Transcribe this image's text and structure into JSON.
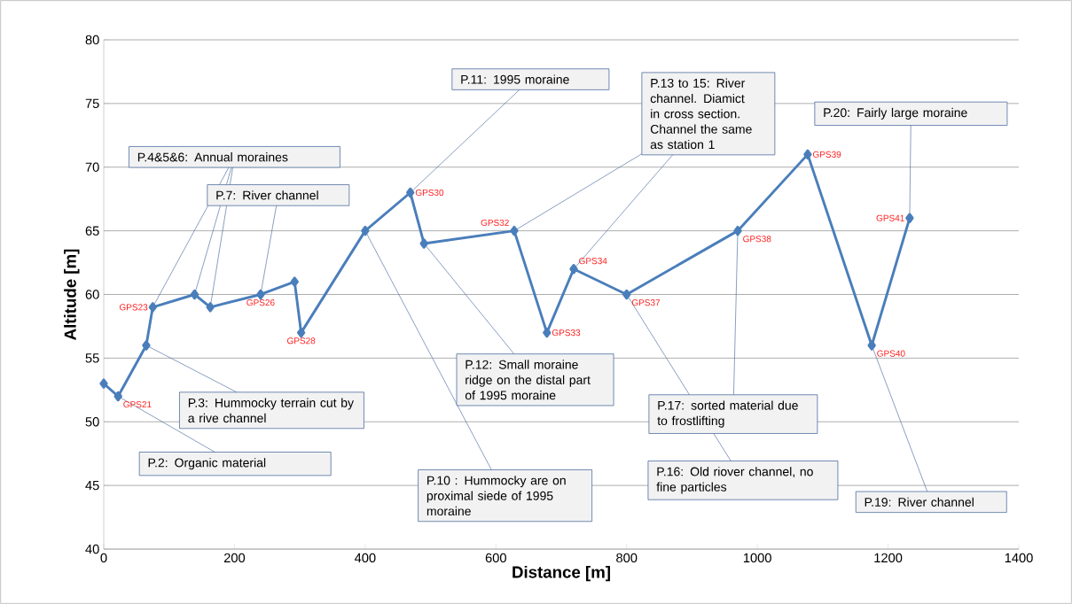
{
  "chart_data": {
    "type": "line",
    "xlabel": "Distance [m]",
    "ylabel": "Altitude [m]",
    "x": [
      0,
      22,
      65,
      75,
      139,
      163,
      240,
      292,
      302,
      400,
      469,
      490,
      628,
      678,
      719,
      800,
      970,
      1077,
      1175,
      1233
    ],
    "values": [
      53,
      52,
      56,
      59,
      60,
      59,
      60,
      61,
      57,
      65,
      68,
      64,
      65,
      57,
      62,
      60,
      65,
      71,
      56,
      66
    ],
    "color": "#4a7ebb",
    "marker": "diamond",
    "line_style": "solid",
    "grid": "y",
    "xlim": [
      0,
      1400
    ],
    "ylim": [
      40,
      80
    ],
    "xticks": [
      0,
      200,
      400,
      600,
      800,
      1000,
      1200,
      1400
    ],
    "yticks": [
      40,
      45,
      50,
      55,
      60,
      65,
      70,
      75,
      80
    ],
    "annotations": [
      {
        "text": "P.4&5&6: Annual moraines",
        "x": 139,
        "y": 60
      },
      {
        "text": "P.7: River channel",
        "x": 240,
        "y": 60
      },
      {
        "text": "P.11: 1995 moraine",
        "x": 469,
        "y": 68
      },
      {
        "text": "P.13 to 15: River channel.  Diamict in cross section. Channel the same as station 1",
        "x": 719,
        "y": 62
      },
      {
        "text": "P.20: Fairly large moraine",
        "x": 1233,
        "y": 66
      },
      {
        "text": "P.3: Hummocky terrain cut by a rive channel",
        "x": 65,
        "y": 56
      },
      {
        "text": "P.2: Organic  material",
        "x": 22,
        "y": 52
      },
      {
        "text": "P.12: Small  moraine ridge on the distal part of 1995 moraine",
        "x": 490,
        "y": 64
      },
      {
        "text": "P.10 : Hummocky are on proximal siede of 1995 moraine",
        "x": 400,
        "y": 65
      },
      {
        "text": "P.17: sorted material due to frostlifting",
        "x": 970,
        "y": 65
      },
      {
        "text": "P.16: Old riover channel, no fine particles",
        "x": 800,
        "y": 60
      },
      {
        "text": "P.19: River channel",
        "x": 1175,
        "y": 56
      },
      {
        "text": "GPS21",
        "x": 22,
        "y": 52
      },
      {
        "text": "GPS23",
        "x": 75,
        "y": 59
      },
      {
        "text": "GPS26",
        "x": 240,
        "y": 60
      },
      {
        "text": "GPS28",
        "x": 302,
        "y": 57
      },
      {
        "text": "GPS30",
        "x": 469,
        "y": 68
      },
      {
        "text": "GPS32",
        "x": 628,
        "y": 65
      },
      {
        "text": "GPS33",
        "x": 678,
        "y": 57
      },
      {
        "text": "GPS34",
        "x": 719,
        "y": 62
      },
      {
        "text": "GPS37",
        "x": 800,
        "y": 60
      },
      {
        "text": "GPS38",
        "x": 970,
        "y": 65
      },
      {
        "text": "GPS39",
        "x": 1077,
        "y": 71
      },
      {
        "text": "GPS40",
        "x": 1175,
        "y": 56
      },
      {
        "text": "GPS41",
        "x": 1233,
        "y": 66
      }
    ]
  }
}
